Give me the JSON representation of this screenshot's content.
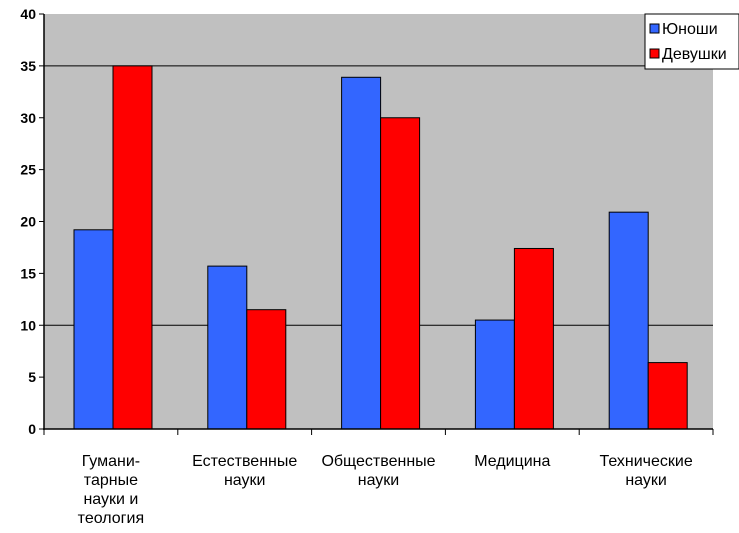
{
  "chart_data": {
    "type": "bar",
    "categories": [
      [
        "Гумани-",
        "тарные",
        "науки и",
        "теология"
      ],
      [
        "Естественные",
        "науки"
      ],
      [
        "Общественные",
        "науки"
      ],
      [
        "Медицина"
      ],
      [
        "Технические",
        "науки"
      ]
    ],
    "series": [
      {
        "name": "Юноши",
        "color": "#3366ff",
        "values": [
          19.2,
          15.7,
          33.9,
          10.5,
          20.9
        ]
      },
      {
        "name": "Девушки",
        "color": "#ff0000",
        "values": [
          35.0,
          11.5,
          30.0,
          17.4,
          6.4
        ]
      }
    ],
    "ylim": [
      0,
      40
    ],
    "yticks": [
      0,
      5,
      10,
      15,
      20,
      25,
      30,
      35,
      40
    ],
    "gridlines": [
      10,
      35
    ],
    "plot_background": "#c0c0c0",
    "legend_position": "top-right",
    "title": "",
    "xlabel": "",
    "ylabel": ""
  }
}
